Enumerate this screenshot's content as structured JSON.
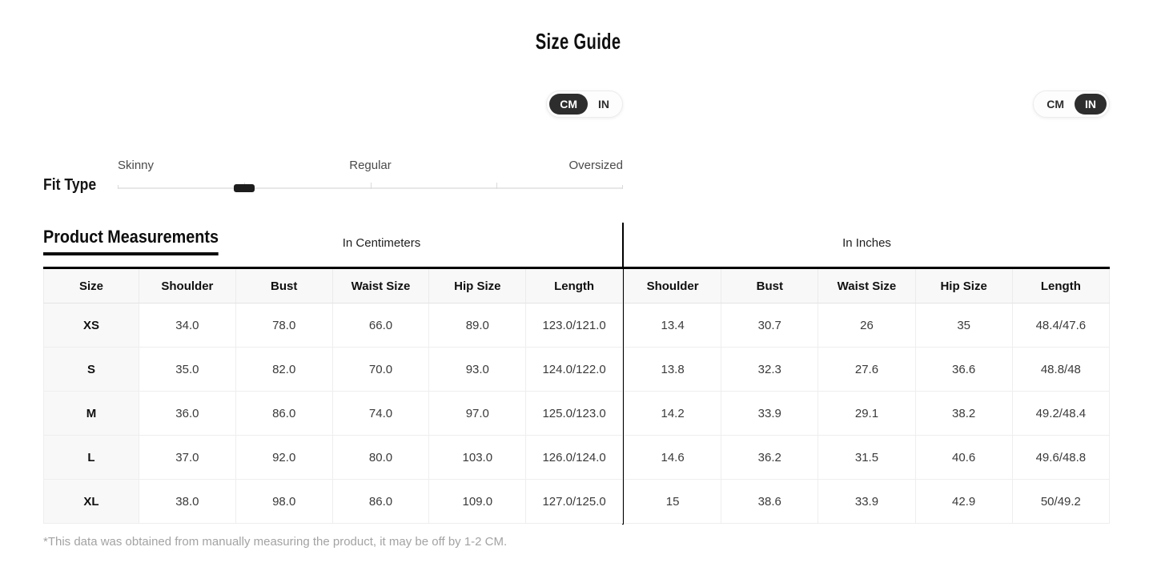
{
  "header": {
    "title": "Size Guide"
  },
  "toggles": {
    "cm_label": "CM",
    "in_label": "IN"
  },
  "fit_type": {
    "label": "Fit Type",
    "options": [
      "Skinny",
      "Regular",
      "Oversized"
    ],
    "selected_position_percent": "25%"
  },
  "section": {
    "heading": "Product Measurements"
  },
  "cm_table": {
    "unit_heading": "In Centimeters",
    "columns": [
      "Size",
      "Shoulder",
      "Bust",
      "Waist Size",
      "Hip Size",
      "Length"
    ],
    "rows": [
      {
        "size": "XS",
        "shoulder": "34.0",
        "bust": "78.0",
        "waist": "66.0",
        "hip": "89.0",
        "length": "123.0/121.0"
      },
      {
        "size": "S",
        "shoulder": "35.0",
        "bust": "82.0",
        "waist": "70.0",
        "hip": "93.0",
        "length": "124.0/122.0"
      },
      {
        "size": "M",
        "shoulder": "36.0",
        "bust": "86.0",
        "waist": "74.0",
        "hip": "97.0",
        "length": "125.0/123.0"
      },
      {
        "size": "L",
        "shoulder": "37.0",
        "bust": "92.0",
        "waist": "80.0",
        "hip": "103.0",
        "length": "126.0/124.0"
      },
      {
        "size": "XL",
        "shoulder": "38.0",
        "bust": "98.0",
        "waist": "86.0",
        "hip": "109.0",
        "length": "127.0/125.0"
      }
    ]
  },
  "in_table": {
    "unit_heading": "In Inches",
    "columns": [
      "Shoulder",
      "Bust",
      "Waist Size",
      "Hip Size",
      "Length"
    ],
    "rows": [
      {
        "shoulder": "13.4",
        "bust": "30.7",
        "waist": "26",
        "hip": "35",
        "length": "48.4/47.6"
      },
      {
        "shoulder": "13.8",
        "bust": "32.3",
        "waist": "27.6",
        "hip": "36.6",
        "length": "48.8/48"
      },
      {
        "shoulder": "14.2",
        "bust": "33.9",
        "waist": "29.1",
        "hip": "38.2",
        "length": "49.2/48.4"
      },
      {
        "shoulder": "14.6",
        "bust": "36.2",
        "waist": "31.5",
        "hip": "40.6",
        "length": "49.6/48.8"
      },
      {
        "shoulder": "15",
        "bust": "38.6",
        "waist": "33.9",
        "hip": "42.9",
        "length": "50/49.2"
      }
    ]
  },
  "footnote": "*This data was obtained from manually measuring the product, it may be off by 1-2 CM.",
  "colors": {
    "toggle_selected_bg": "#2d2d2d",
    "slider_handle": "#1d1d1d",
    "table_header_border": "#000000",
    "row_alt_bg": "#f8f8f8"
  }
}
